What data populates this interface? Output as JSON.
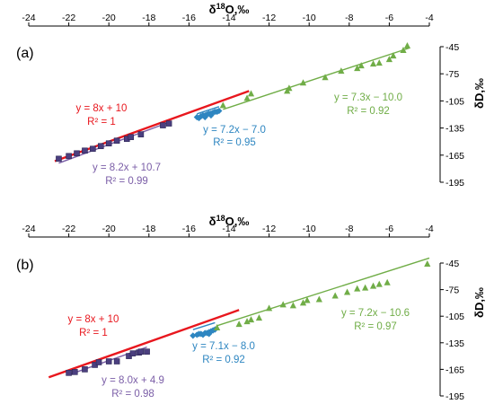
{
  "chart_data": [
    {
      "type": "scatter",
      "panel_label": "(a)",
      "xlabel": "δ18O,‰",
      "ylabel": "δD,‰",
      "xlabel_parts": {
        "delta": "δ",
        "sup": "18",
        "rest": "O,",
        "unit": "‰"
      },
      "ylabel_parts": {
        "delta": "δD,",
        "unit": "‰"
      },
      "x_axis_position": "top",
      "y_axis_position": "right",
      "xlim": [
        -24,
        -4
      ],
      "ylim": [
        -195,
        -45
      ],
      "y_inverted": true,
      "xticks": [
        "-24",
        "-22",
        "-20",
        "-18",
        "-16",
        "-14",
        "-12",
        "-10",
        "-8",
        "-6",
        "-4"
      ],
      "yticks": [
        "-45",
        "-75",
        "-105",
        "-135",
        "-165",
        "-195"
      ],
      "grid": false,
      "series": [
        {
          "name": "purple squares",
          "color": "#4b3f7f",
          "marker": "square",
          "x": [
            -22.5,
            -22.0,
            -21.6,
            -21.2,
            -20.8,
            -20.4,
            -20.0,
            -19.6,
            -19.1,
            -18.9,
            -18.4,
            -17.3,
            -17.0
          ],
          "y": [
            -169,
            -166,
            -163,
            -160,
            -158,
            -155,
            -152,
            -149,
            -147,
            -145,
            -142,
            -132,
            -130
          ],
          "fit": {
            "label": "y = 8.2x + 10.7",
            "r2": "R² = 0.99",
            "x": [
              -22.5,
              -17.0
            ],
            "color": "#7b5ea7"
          }
        },
        {
          "name": "blue diamonds",
          "color": "#2e86c1",
          "marker": "diamond",
          "x": [
            -15.6,
            -15.4,
            -15.3,
            -15.2,
            -15.1,
            -15.0,
            -14.9,
            -14.8,
            -14.7,
            -14.6,
            -14.5,
            -15.5,
            -15.2,
            -14.9
          ],
          "y": [
            -123,
            -122,
            -121,
            -121,
            -120,
            -119,
            -119,
            -118,
            -117,
            -117,
            -116,
            -124,
            -123,
            -121
          ],
          "fit": {
            "label": "y = 7.2x − 7.0",
            "r2": "R² = 0.95",
            "x": [
              -15.6,
              -14.5
            ],
            "color": "#2e86c1"
          }
        },
        {
          "name": "green triangles",
          "color": "#70ad47",
          "marker": "triangle",
          "x": [
            -14.3,
            -13.1,
            -12.9,
            -11.1,
            -11.0,
            -10.3,
            -9.2,
            -8.4,
            -7.6,
            -7.4,
            -6.8,
            -6.5,
            -6.0,
            -5.8,
            -5.3,
            -5.1
          ],
          "y": [
            -110,
            -102,
            -97,
            -94,
            -91,
            -85,
            -79,
            -72,
            -69,
            -66,
            -64,
            -63,
            -59,
            -55,
            -49,
            -44
          ],
          "fit": {
            "label": "y = 7.3x − 10.0",
            "r2": "R² = 0.92",
            "x": [
              -14.3,
              -5.0
            ],
            "color": "#70ad47"
          }
        }
      ],
      "red_line": {
        "label": "y = 8x + 10",
        "r2": "R² = 1",
        "color": "#e8171e",
        "x": [
          -22.7,
          -13.0
        ]
      }
    },
    {
      "type": "scatter",
      "panel_label": "(b)",
      "xlabel": "δ18O,‰",
      "ylabel": "δD,‰",
      "xlabel_parts": {
        "delta": "δ",
        "sup": "18",
        "rest": "O,",
        "unit": "‰"
      },
      "ylabel_parts": {
        "delta": "δD,",
        "unit": "‰"
      },
      "x_axis_position": "top",
      "y_axis_position": "right",
      "xlim": [
        -24,
        -4
      ],
      "ylim": [
        -195,
        -45
      ],
      "y_inverted": true,
      "xticks": [
        "-24",
        "-22",
        "-20",
        "-18",
        "-16",
        "-14",
        "-12",
        "-10",
        "-8",
        "-6",
        "-4"
      ],
      "yticks": [
        "-45",
        "-75",
        "-105",
        "-135",
        "-165",
        "-195"
      ],
      "grid": false,
      "series": [
        {
          "name": "purple squares",
          "color": "#4b3f7f",
          "marker": "square",
          "x": [
            -22.0,
            -21.7,
            -21.2,
            -20.7,
            -20.5,
            -20.0,
            -19.6,
            -19.0,
            -18.8,
            -18.5,
            -18.4,
            -18.1
          ],
          "y": [
            -169,
            -168,
            -165,
            -160,
            -157,
            -156,
            -156,
            -150,
            -147,
            -146,
            -145,
            -145
          ],
          "fit": {
            "label": "y = 8.0x + 4.9",
            "r2": "R² = 0.98",
            "x": [
              -22.0,
              -18.1
            ],
            "color": "#7b5ea7"
          }
        },
        {
          "name": "blue diamonds",
          "color": "#2e86c1",
          "marker": "diamond",
          "x": [
            -15.8,
            -15.6,
            -15.5,
            -15.4,
            -15.2,
            -15.1,
            -15.0,
            -14.9,
            -14.8,
            -14.7,
            -15.3,
            -15.0
          ],
          "y": [
            -127,
            -126,
            -125,
            -125,
            -124,
            -124,
            -123,
            -122,
            -121,
            -120,
            -126,
            -125
          ],
          "fit": {
            "label": "y = 7.1x − 8.0",
            "r2": "R² = 0.92",
            "x": [
              -15.8,
              -14.7
            ],
            "color": "#2e86c1"
          }
        },
        {
          "name": "green triangles",
          "color": "#70ad47",
          "marker": "triangle",
          "x": [
            -14.6,
            -13.5,
            -13.1,
            -12.9,
            -12.5,
            -12.0,
            -11.3,
            -10.8,
            -10.3,
            -10.1,
            -9.5,
            -8.7,
            -8.1,
            -7.6,
            -7.2,
            -6.8,
            -6.5,
            -6.1,
            -4.1
          ],
          "y": [
            -118,
            -114,
            -111,
            -109,
            -107,
            -96,
            -92,
            -93,
            -90,
            -87,
            -86,
            -82,
            -78,
            -74,
            -73,
            -71,
            -69,
            -67,
            -46
          ],
          "fit": {
            "label": "y = 7.2x − 10.6",
            "r2": "R² = 0.97",
            "x": [
              -14.6,
              -4.0
            ],
            "color": "#70ad47"
          }
        }
      ],
      "red_line": {
        "label": "y = 8x + 10",
        "r2": "R² = 1",
        "color": "#e8171e",
        "x": [
          -23.0,
          -13.5
        ]
      }
    }
  ]
}
